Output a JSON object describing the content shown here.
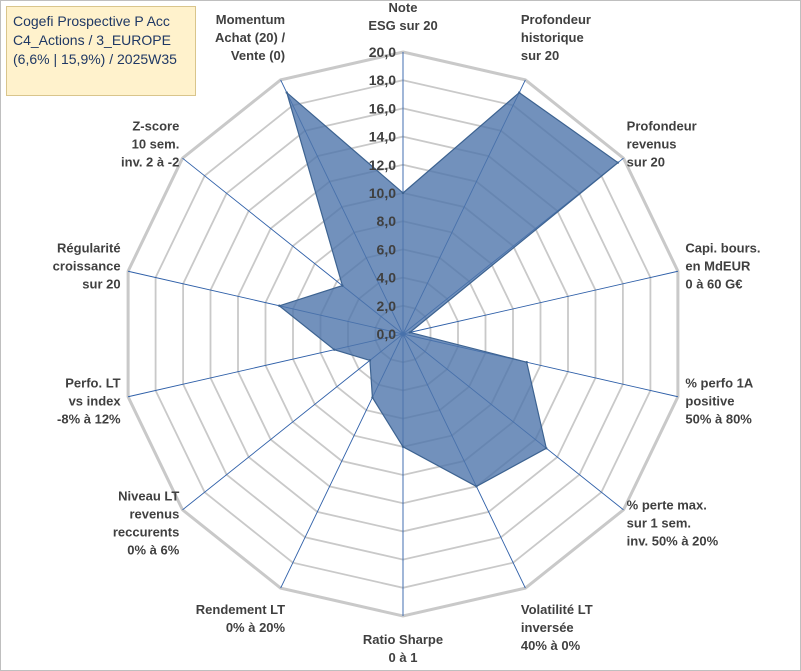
{
  "title_lines": [
    "Cogefi Prospective P Acc",
    "C4_Actions / 3_EUROPE",
    "(6,6% | 15,9%) / 2025W35"
  ],
  "chart_data": {
    "type": "radar",
    "title": "",
    "rmin": 0,
    "rmax": 20,
    "tick_step": 2,
    "grid": true,
    "ticks": [
      "0,0",
      "2,0",
      "4,0",
      "6,0",
      "8,0",
      "10,0",
      "12,0",
      "14,0",
      "16,0",
      "18,0",
      "20,0"
    ],
    "axes": [
      [
        "Note",
        "ESG sur 20"
      ],
      [
        "Profondeur",
        "historique",
        "sur 20"
      ],
      [
        "Profondeur",
        "revenus",
        "sur 20"
      ],
      [
        "Capi. bours.",
        "en MdEUR",
        "0 à 60 G€"
      ],
      [
        "% perfo 1A",
        "positive",
        "50% à 80%"
      ],
      [
        "% perte max.",
        "sur 1 sem.",
        "inv. 50% à 20%"
      ],
      [
        "Volatilité LT",
        "inversée",
        "40% à 0%"
      ],
      [
        "Ratio Sharpe",
        "0 à 1"
      ],
      [
        "Rendement LT",
        "0% à 20%"
      ],
      [
        "Niveau LT",
        "revenus",
        "reccurents",
        "0% à 6%"
      ],
      [
        "Perfo. LT",
        "vs index",
        "-8% à 12%"
      ],
      [
        "Régularité",
        "croissance",
        "sur 20"
      ],
      [
        "Z-score",
        "10 sem.",
        "inv. 2 à -2"
      ],
      [
        "Momentum",
        "Achat (20) /",
        "Vente (0)"
      ]
    ],
    "series": [
      {
        "values": [
          10,
          19,
          19.5,
          0.5,
          9,
          13,
          12,
          8,
          5,
          3,
          5,
          9,
          5.5,
          19
        ]
      }
    ],
    "colors": {
      "fill": "#4f76ab",
      "stroke": "#3d6391",
      "grid": "#c9c9c9",
      "spoke": "#2e5fa8"
    }
  }
}
